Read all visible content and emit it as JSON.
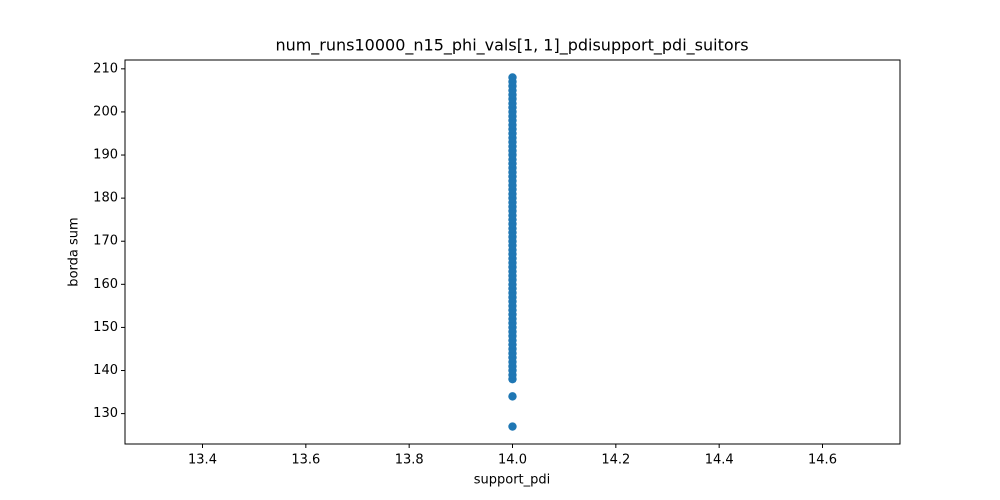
{
  "chart_data": {
    "type": "scatter",
    "title": "num_runs10000_n15_phi_vals[1, 1]_pdisupport_pdi_suitors",
    "x_label": "support_pdi",
    "y_label": "borda sum",
    "xlim": [
      13.25,
      14.75
    ],
    "ylim": [
      122.95,
      212.05
    ],
    "xticks": [
      13.4,
      13.6,
      13.8,
      {
        "value": 14,
        "label": "14.0"
      },
      14.2,
      14.4,
      14.6
    ],
    "yticks": [
      130,
      140,
      150,
      160,
      170,
      180,
      190,
      200,
      210
    ],
    "series": [
      {
        "color": "#1f77b4",
        "x": [
          14,
          14,
          14,
          14,
          14,
          14,
          14,
          14,
          14,
          14,
          14,
          14,
          14,
          14,
          14,
          14,
          14,
          14,
          14,
          14,
          14,
          14,
          14,
          14,
          14,
          14,
          14,
          14,
          14,
          14,
          14,
          14,
          14,
          14,
          14,
          14,
          14,
          14,
          14,
          14,
          14,
          14,
          14,
          14,
          14,
          14,
          14,
          14,
          14,
          14,
          14,
          14,
          14,
          14,
          14,
          14,
          14,
          14,
          14,
          14,
          14,
          14,
          14,
          14,
          14,
          14,
          14,
          14,
          14,
          14,
          14,
          14,
          14
        ],
        "values": [
          127,
          134,
          138,
          139,
          140,
          141,
          142,
          143,
          144,
          145,
          146,
          147,
          148,
          149,
          150,
          151,
          152,
          153,
          154,
          155,
          156,
          157,
          158,
          159,
          160,
          161,
          162,
          163,
          164,
          165,
          166,
          167,
          168,
          169,
          170,
          171,
          172,
          173,
          174,
          175,
          176,
          177,
          178,
          179,
          180,
          181,
          182,
          183,
          184,
          185,
          186,
          187,
          188,
          189,
          190,
          191,
          192,
          193,
          194,
          195,
          196,
          197,
          198,
          199,
          200,
          201,
          202,
          203,
          204,
          205,
          206,
          207,
          208
        ]
      }
    ]
  }
}
